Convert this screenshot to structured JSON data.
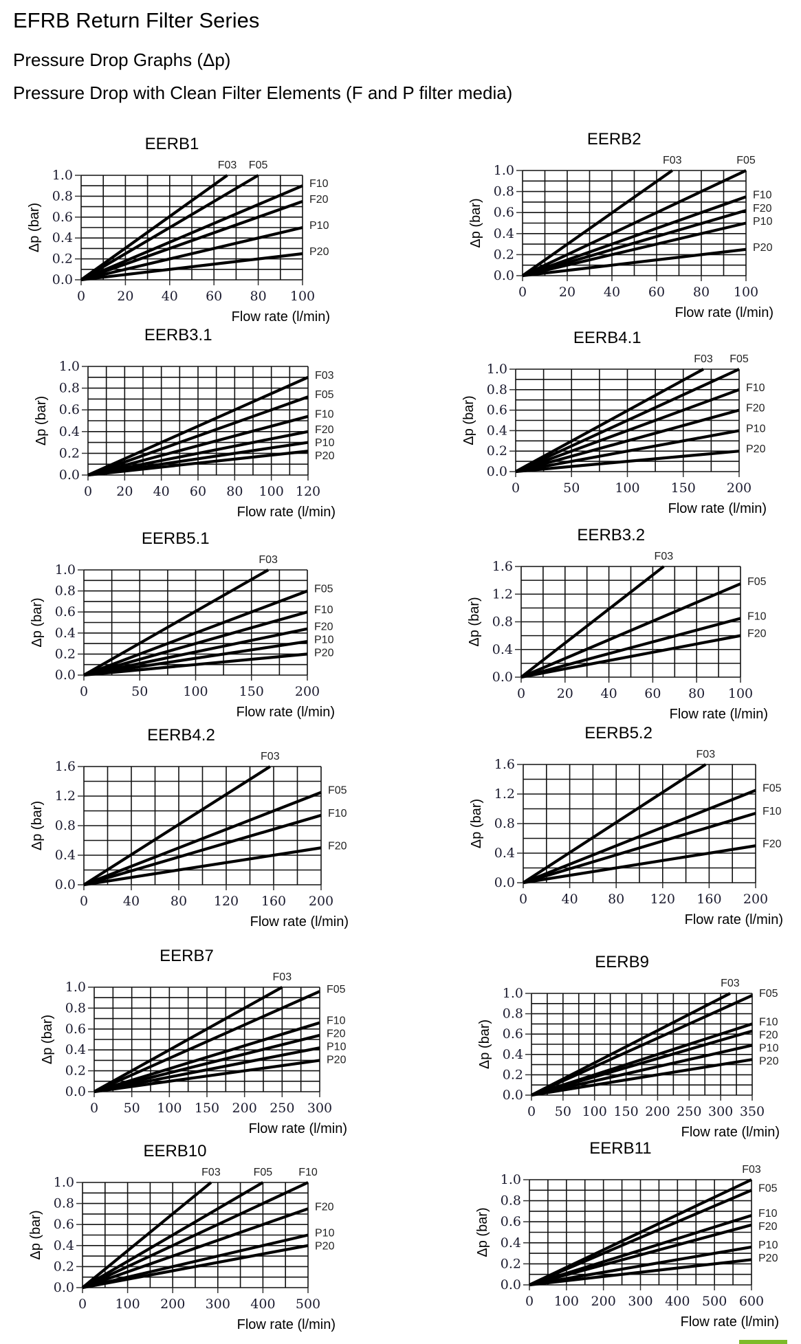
{
  "header": {
    "title": "EFRB Return Filter Series",
    "subtitle": "Pressure Drop Graphs (Δp)",
    "caption": "Pressure Drop with Clean Filter Elements (F and P filter media)"
  },
  "colors": {
    "line": "#000000",
    "grid": "#000000",
    "tick_text": "#1a1a2e",
    "brand": "#7dbb2a"
  },
  "chart_data": [
    {
      "type": "line",
      "title": "EERB1",
      "xlabel": "Flow rate (l/min)",
      "ylabel": "Δp (bar)",
      "xlim": [
        0,
        100
      ],
      "ylim": [
        0,
        1.0
      ],
      "xticks": [
        0,
        20,
        40,
        60,
        80,
        100
      ],
      "yticks": [
        0.0,
        0.2,
        0.4,
        0.6,
        0.8,
        1.0
      ],
      "xminor": 10,
      "yminor": 0.1,
      "grid": true,
      "ydec": 1,
      "series": [
        {
          "name": "F03",
          "x": [
            0,
            66
          ],
          "y": [
            0,
            1.0
          ]
        },
        {
          "name": "F05",
          "x": [
            0,
            80
          ],
          "y": [
            0,
            1.0
          ]
        },
        {
          "name": "F10",
          "x": [
            0,
            100
          ],
          "y": [
            0,
            0.9
          ]
        },
        {
          "name": "F20",
          "x": [
            0,
            100
          ],
          "y": [
            0,
            0.75
          ]
        },
        {
          "name": "P10",
          "x": [
            0,
            100
          ],
          "y": [
            0,
            0.5
          ]
        },
        {
          "name": "P20",
          "x": [
            0,
            100
          ],
          "y": [
            0,
            0.25
          ]
        }
      ]
    },
    {
      "type": "line",
      "title": "EERB2",
      "xlabel": "Flow rate (l/min)",
      "ylabel": "Δp (bar)",
      "xlim": [
        0,
        100
      ],
      "ylim": [
        0,
        1.0
      ],
      "xticks": [
        0,
        20,
        40,
        60,
        80,
        100
      ],
      "yticks": [
        0.0,
        0.2,
        0.4,
        0.6,
        0.8,
        1.0
      ],
      "xminor": 10,
      "yminor": 0.1,
      "grid": true,
      "ydec": 1,
      "series": [
        {
          "name": "F03",
          "x": [
            0,
            67
          ],
          "y": [
            0,
            1.0
          ]
        },
        {
          "name": "F05",
          "x": [
            0,
            100
          ],
          "y": [
            0,
            1.0
          ]
        },
        {
          "name": "F10",
          "x": [
            0,
            100
          ],
          "y": [
            0,
            0.75
          ]
        },
        {
          "name": "F20",
          "x": [
            0,
            100
          ],
          "y": [
            0,
            0.62
          ]
        },
        {
          "name": "P10",
          "x": [
            0,
            100
          ],
          "y": [
            0,
            0.5
          ]
        },
        {
          "name": "P20",
          "x": [
            0,
            100
          ],
          "y": [
            0,
            0.25
          ]
        }
      ]
    },
    {
      "type": "line",
      "title": "EERB3.1",
      "xlabel": "Flow rate (l/min)",
      "ylabel": "Δp (bar)",
      "xlim": [
        0,
        120
      ],
      "ylim": [
        0,
        1.0
      ],
      "xticks": [
        0,
        20,
        40,
        60,
        80,
        100,
        120
      ],
      "yticks": [
        0.0,
        0.2,
        0.4,
        0.6,
        0.8,
        1.0
      ],
      "xminor": 10,
      "yminor": 0.1,
      "grid": true,
      "ydec": 1,
      "series": [
        {
          "name": "F03",
          "x": [
            0,
            120
          ],
          "y": [
            0,
            0.9
          ]
        },
        {
          "name": "F05",
          "x": [
            0,
            120
          ],
          "y": [
            0,
            0.72
          ]
        },
        {
          "name": "F10",
          "x": [
            0,
            120
          ],
          "y": [
            0,
            0.54
          ]
        },
        {
          "name": "F20",
          "x": [
            0,
            120
          ],
          "y": [
            0,
            0.4
          ]
        },
        {
          "name": "P10",
          "x": [
            0,
            120
          ],
          "y": [
            0,
            0.3
          ]
        },
        {
          "name": "P20",
          "x": [
            0,
            120
          ],
          "y": [
            0,
            0.22
          ]
        }
      ]
    },
    {
      "type": "line",
      "title": "EERB4.1",
      "xlabel": "Flow rate (l/min)",
      "ylabel": "Δp (bar)",
      "xlim": [
        0,
        200
      ],
      "ylim": [
        0,
        1.0
      ],
      "xticks": [
        0,
        50,
        100,
        150,
        200
      ],
      "yticks": [
        0.0,
        0.2,
        0.4,
        0.6,
        0.8,
        1.0
      ],
      "xminor": 25,
      "yminor": 0.1,
      "grid": true,
      "ydec": 1,
      "series": [
        {
          "name": "F03",
          "x": [
            0,
            168
          ],
          "y": [
            0,
            1.0
          ]
        },
        {
          "name": "F05",
          "x": [
            0,
            200
          ],
          "y": [
            0,
            1.0
          ]
        },
        {
          "name": "F10",
          "x": [
            0,
            200
          ],
          "y": [
            0,
            0.8
          ]
        },
        {
          "name": "F20",
          "x": [
            0,
            200
          ],
          "y": [
            0,
            0.6
          ]
        },
        {
          "name": "P10",
          "x": [
            0,
            200
          ],
          "y": [
            0,
            0.4
          ]
        },
        {
          "name": "P20",
          "x": [
            0,
            200
          ],
          "y": [
            0,
            0.2
          ]
        }
      ]
    },
    {
      "type": "line",
      "title": "EERB5.1",
      "xlabel": "Flow rate (l/min)",
      "ylabel": "Δp (bar)",
      "xlim": [
        0,
        200
      ],
      "ylim": [
        0,
        1.0
      ],
      "xticks": [
        0,
        50,
        100,
        150,
        200
      ],
      "yticks": [
        0.0,
        0.2,
        0.4,
        0.6,
        0.8,
        1.0
      ],
      "xminor": 25,
      "yminor": 0.1,
      "grid": true,
      "ydec": 1,
      "series": [
        {
          "name": "F03",
          "x": [
            0,
            165
          ],
          "y": [
            0,
            1.0
          ]
        },
        {
          "name": "F05",
          "x": [
            0,
            200
          ],
          "y": [
            0,
            0.8
          ]
        },
        {
          "name": "F10",
          "x": [
            0,
            200
          ],
          "y": [
            0,
            0.6
          ]
        },
        {
          "name": "F20",
          "x": [
            0,
            200
          ],
          "y": [
            0,
            0.44
          ]
        },
        {
          "name": "P10",
          "x": [
            0,
            200
          ],
          "y": [
            0,
            0.32
          ]
        },
        {
          "name": "P20",
          "x": [
            0,
            200
          ],
          "y": [
            0,
            0.2
          ]
        }
      ]
    },
    {
      "type": "line",
      "title": "EERB3.2",
      "xlabel": "Flow rate (l/min)",
      "ylabel": "Δp (bar)",
      "xlim": [
        0,
        100
      ],
      "ylim": [
        0,
        1.6
      ],
      "xticks": [
        0,
        20,
        40,
        60,
        80,
        100
      ],
      "yticks": [
        0.0,
        0.4,
        0.8,
        1.2,
        1.6
      ],
      "xminor": 10,
      "yminor": 0.2,
      "grid": true,
      "ydec": 1,
      "series": [
        {
          "name": "F03",
          "x": [
            0,
            65
          ],
          "y": [
            0,
            1.6
          ]
        },
        {
          "name": "F05",
          "x": [
            0,
            100
          ],
          "y": [
            0,
            1.35
          ]
        },
        {
          "name": "F10",
          "x": [
            0,
            100
          ],
          "y": [
            0,
            0.85
          ]
        },
        {
          "name": "F20",
          "x": [
            0,
            100
          ],
          "y": [
            0,
            0.6
          ]
        }
      ]
    },
    {
      "type": "line",
      "title": "EERB4.2",
      "xlabel": "Flow rate (l/min)",
      "ylabel": "Δp (bar)",
      "xlim": [
        0,
        200
      ],
      "ylim": [
        0,
        1.6
      ],
      "xticks": [
        0,
        40,
        80,
        120,
        160,
        200
      ],
      "yticks": [
        0.0,
        0.4,
        0.8,
        1.2,
        1.6
      ],
      "xminor": 20,
      "yminor": 0.2,
      "grid": true,
      "ydec": 1,
      "series": [
        {
          "name": "F03",
          "x": [
            0,
            157
          ],
          "y": [
            0,
            1.6
          ]
        },
        {
          "name": "F05",
          "x": [
            0,
            200
          ],
          "y": [
            0,
            1.25
          ]
        },
        {
          "name": "F10",
          "x": [
            0,
            200
          ],
          "y": [
            0,
            0.94
          ]
        },
        {
          "name": "F20",
          "x": [
            0,
            200
          ],
          "y": [
            0,
            0.5
          ]
        }
      ]
    },
    {
      "type": "line",
      "title": "EERB5.2",
      "xlabel": "Flow rate (l/min)",
      "ylabel": "Δp (bar)",
      "xlim": [
        0,
        200
      ],
      "ylim": [
        0,
        1.6
      ],
      "xticks": [
        0,
        40,
        80,
        120,
        160,
        200
      ],
      "yticks": [
        0.0,
        0.4,
        0.8,
        1.2,
        1.6
      ],
      "xminor": 20,
      "yminor": 0.2,
      "grid": true,
      "ydec": 1,
      "series": [
        {
          "name": "F03",
          "x": [
            0,
            157
          ],
          "y": [
            0,
            1.6
          ]
        },
        {
          "name": "F05",
          "x": [
            0,
            200
          ],
          "y": [
            0,
            1.25
          ]
        },
        {
          "name": "F10",
          "x": [
            0,
            200
          ],
          "y": [
            0,
            0.94
          ]
        },
        {
          "name": "F20",
          "x": [
            0,
            200
          ],
          "y": [
            0,
            0.5
          ]
        }
      ]
    },
    {
      "type": "line",
      "title": "EERB7",
      "xlabel": "Flow rate (l/min)",
      "ylabel": "Δp (bar)",
      "xlim": [
        0,
        300
      ],
      "ylim": [
        0,
        1.0
      ],
      "xticks": [
        0,
        50,
        100,
        150,
        200,
        250,
        300
      ],
      "yticks": [
        0.0,
        0.2,
        0.4,
        0.6,
        0.8,
        1.0
      ],
      "xminor": 25,
      "yminor": 0.1,
      "grid": true,
      "ydec": 1,
      "series": [
        {
          "name": "F03",
          "x": [
            0,
            250
          ],
          "y": [
            0,
            1.0
          ]
        },
        {
          "name": "F05",
          "x": [
            0,
            300
          ],
          "y": [
            0,
            0.96
          ]
        },
        {
          "name": "F10",
          "x": [
            0,
            300
          ],
          "y": [
            0,
            0.66
          ]
        },
        {
          "name": "F20",
          "x": [
            0,
            300
          ],
          "y": [
            0,
            0.54
          ]
        },
        {
          "name": "P10",
          "x": [
            0,
            300
          ],
          "y": [
            0,
            0.42
          ]
        },
        {
          "name": "P20",
          "x": [
            0,
            300
          ],
          "y": [
            0,
            0.3
          ]
        }
      ]
    },
    {
      "type": "line",
      "title": "EERB9",
      "xlabel": "Flow rate (l/min)",
      "ylabel": "Δp (bar)",
      "xlim": [
        0,
        350
      ],
      "ylim": [
        0,
        1.0
      ],
      "xticks": [
        0,
        50,
        100,
        150,
        200,
        250,
        300,
        350
      ],
      "yticks": [
        0.0,
        0.2,
        0.4,
        0.6,
        0.8,
        1.0
      ],
      "xminor": 25,
      "yminor": 0.1,
      "grid": true,
      "ydec": 1,
      "series": [
        {
          "name": "F03",
          "x": [
            0,
            315
          ],
          "y": [
            0,
            1.0
          ]
        },
        {
          "name": "F05",
          "x": [
            0,
            350
          ],
          "y": [
            0,
            0.98
          ]
        },
        {
          "name": "F10",
          "x": [
            0,
            350
          ],
          "y": [
            0,
            0.7
          ]
        },
        {
          "name": "F20",
          "x": [
            0,
            350
          ],
          "y": [
            0,
            0.63
          ]
        },
        {
          "name": "P10",
          "x": [
            0,
            350
          ],
          "y": [
            0,
            0.49
          ]
        },
        {
          "name": "P20",
          "x": [
            0,
            350
          ],
          "y": [
            0,
            0.35
          ]
        }
      ]
    },
    {
      "type": "line",
      "title": "EERB10",
      "xlabel": "Flow rate (l/min)",
      "ylabel": "Δp (bar)",
      "xlim": [
        0,
        500
      ],
      "ylim": [
        0,
        1.0
      ],
      "xticks": [
        0,
        100,
        200,
        300,
        400,
        500
      ],
      "yticks": [
        0.0,
        0.2,
        0.4,
        0.6,
        0.8,
        1.0
      ],
      "xminor": 50,
      "yminor": 0.1,
      "grid": true,
      "ydec": 1,
      "series": [
        {
          "name": "F03",
          "x": [
            0,
            285
          ],
          "y": [
            0,
            1.0
          ]
        },
        {
          "name": "F05",
          "x": [
            0,
            400
          ],
          "y": [
            0,
            1.0
          ]
        },
        {
          "name": "F10",
          "x": [
            0,
            500
          ],
          "y": [
            0,
            1.0
          ]
        },
        {
          "name": "F20",
          "x": [
            0,
            500
          ],
          "y": [
            0,
            0.75
          ]
        },
        {
          "name": "P10",
          "x": [
            0,
            500
          ],
          "y": [
            0,
            0.5
          ]
        },
        {
          "name": "P20",
          "x": [
            0,
            500
          ],
          "y": [
            0,
            0.4
          ]
        }
      ]
    },
    {
      "type": "line",
      "title": "EERB11",
      "xlabel": "Flow rate (l/min)",
      "ylabel": "Δp (bar)",
      "xlim": [
        0,
        600
      ],
      "ylim": [
        0,
        1.0
      ],
      "xticks": [
        0,
        100,
        200,
        300,
        400,
        500,
        600
      ],
      "yticks": [
        0.0,
        0.2,
        0.4,
        0.6,
        0.8,
        1.0
      ],
      "xminor": 50,
      "yminor": 0.1,
      "grid": true,
      "ydec": 1,
      "series": [
        {
          "name": "F03",
          "x": [
            0,
            600
          ],
          "y": [
            0,
            1.0
          ]
        },
        {
          "name": "F05",
          "x": [
            0,
            600
          ],
          "y": [
            0,
            0.9
          ]
        },
        {
          "name": "F10",
          "x": [
            0,
            600
          ],
          "y": [
            0,
            0.66
          ]
        },
        {
          "name": "F20",
          "x": [
            0,
            600
          ],
          "y": [
            0,
            0.57
          ]
        },
        {
          "name": "P10",
          "x": [
            0,
            600
          ],
          "y": [
            0,
            0.36
          ]
        },
        {
          "name": "P20",
          "x": [
            0,
            600
          ],
          "y": [
            0,
            0.24
          ]
        }
      ]
    }
  ]
}
